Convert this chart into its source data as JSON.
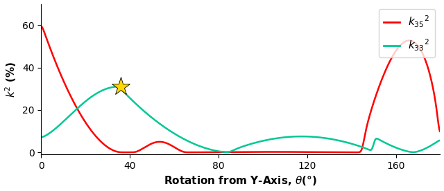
{
  "title": "",
  "xlabel": "Rotation from Y-Axis, $\\theta$(°)",
  "ylabel": "$k^2$ (%)",
  "xlim": [
    0,
    180
  ],
  "ylim": [
    -1,
    70
  ],
  "yticks": [
    0,
    20,
    40,
    60
  ],
  "xticks": [
    0,
    40,
    80,
    120,
    160
  ],
  "color_k35": "#FF0000",
  "color_k33": "#00C896",
  "star_x": 36,
  "star_y": 31,
  "star_color": "#FFD700",
  "legend_loc": "upper right",
  "fig_width": 6.4,
  "fig_height": 2.76,
  "dpi": 100
}
